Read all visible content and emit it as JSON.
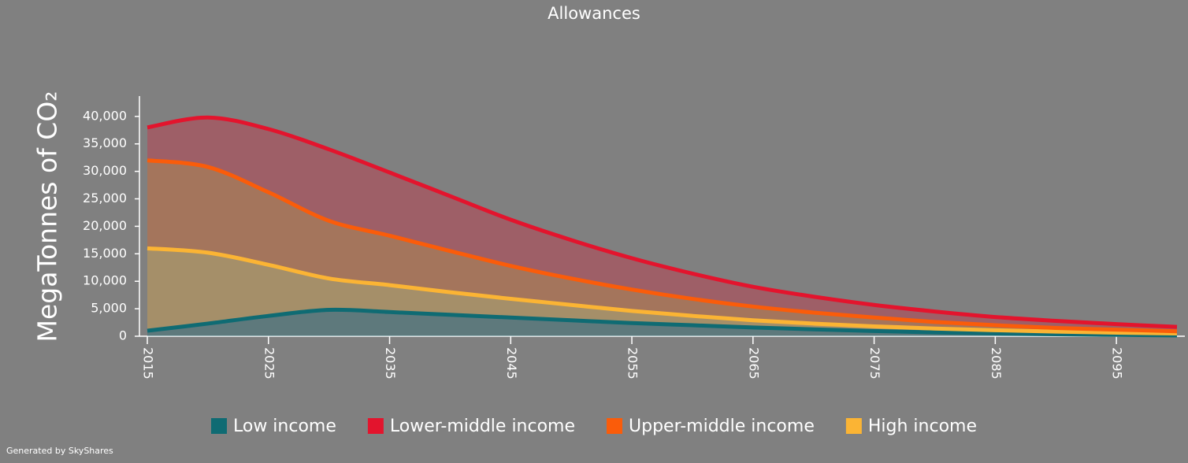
{
  "chart_data": {
    "type": "stacked_area",
    "title": "Allowances",
    "y_label": "MegaTonnes of CO₂",
    "footer": "Generated by SkyShares",
    "x": [
      2015,
      2020,
      2025,
      2030,
      2035,
      2040,
      2045,
      2050,
      2055,
      2060,
      2065,
      2070,
      2075,
      2080,
      2085,
      2090,
      2095,
      2100
    ],
    "stack_order": [
      0,
      3,
      2,
      1
    ],
    "series": [
      {
        "name": "Low income",
        "color": "#0f6b73",
        "values": [
          1000,
          2300,
          3700,
          4800,
          4400,
          3900,
          3400,
          2900,
          2400,
          2000,
          1600,
          1250,
          950,
          700,
          500,
          350,
          250,
          150
        ]
      },
      {
        "name": "Lower-middle income",
        "color": "#e3142d",
        "values": [
          6000,
          9000,
          11500,
          13000,
          11500,
          10000,
          8400,
          7000,
          5700,
          4600,
          3600,
          2900,
          2300,
          1900,
          1500,
          1300,
          1000,
          800
        ]
      },
      {
        "name": "Upper-middle income",
        "color": "#fa5c0a",
        "values": [
          16000,
          15600,
          13200,
          10500,
          9000,
          7500,
          6000,
          4800,
          3900,
          3100,
          2500,
          2000,
          1600,
          1200,
          900,
          650,
          550,
          400
        ]
      },
      {
        "name": "High income",
        "color": "#fbb434",
        "values": [
          15000,
          12900,
          9300,
          5700,
          4900,
          4100,
          3400,
          2800,
          2200,
          1700,
          1300,
          1050,
          850,
          700,
          600,
          500,
          400,
          350
        ]
      }
    ],
    "xlim": [
      2015,
      2100
    ],
    "ylim": [
      0,
      43700
    ],
    "xticks": [
      2015,
      2025,
      2035,
      2045,
      2055,
      2065,
      2075,
      2085,
      2095
    ],
    "yticks": [
      0,
      {
        "value": 5000,
        "label": "5,000"
      },
      {
        "value": 10000,
        "label": "10,000"
      },
      {
        "value": 15000,
        "label": "15,000"
      },
      {
        "value": 20000,
        "label": "20,000"
      },
      {
        "value": 25000,
        "label": "25,000"
      },
      {
        "value": 30000,
        "label": "30,000"
      },
      {
        "value": 35000,
        "label": "35,000"
      },
      {
        "value": 40000,
        "label": "40,000"
      }
    ],
    "legend": "bottom"
  }
}
